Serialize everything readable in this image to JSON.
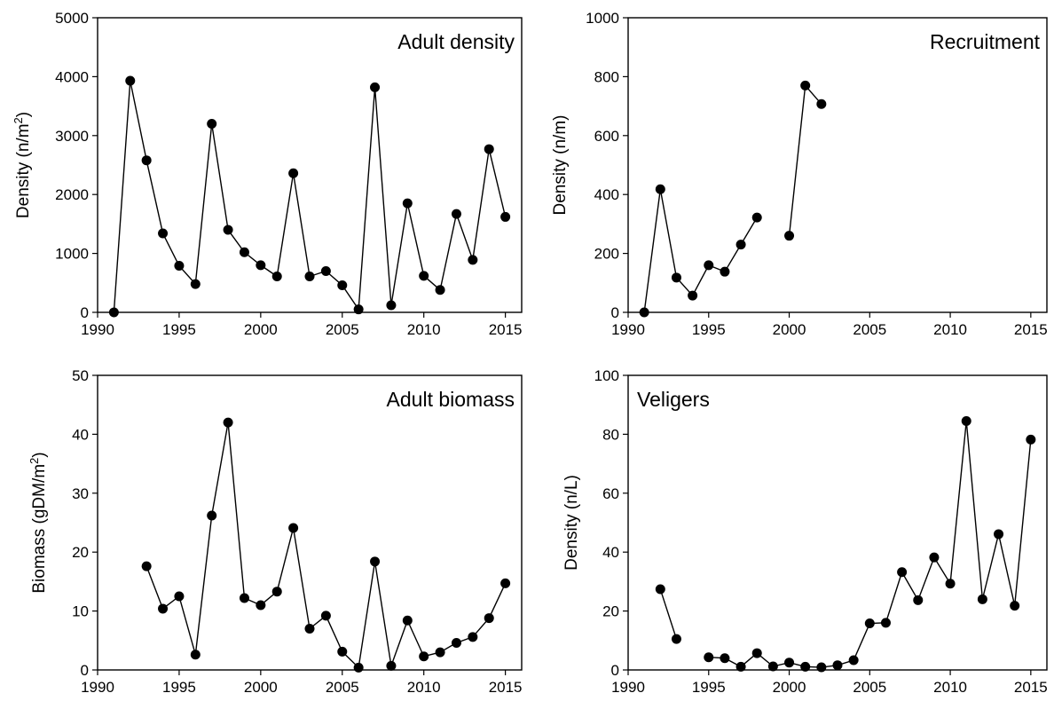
{
  "chart_data": [
    {
      "type": "line",
      "title": "Adult density",
      "title_position": "top-right",
      "xlabel": "",
      "ylabel": "Density (n/m",
      "ylabel_superscript": "2",
      "ylabel_suffix": ")",
      "xlim": [
        1990,
        2016
      ],
      "ylim": [
        0,
        5000
      ],
      "xticks": [
        1990,
        1995,
        2000,
        2005,
        2010,
        2015
      ],
      "yticks": [
        0,
        1000,
        2000,
        3000,
        4000,
        5000
      ],
      "grid": false,
      "marker": "filled-circle",
      "series": [
        {
          "x": [
            1991,
            1992,
            1993,
            1994,
            1995,
            1996,
            1997,
            1998,
            1999,
            2000,
            2001,
            2002,
            2003,
            2004,
            2005,
            2006,
            2007,
            2008,
            2009,
            2010,
            2011,
            2012,
            2013,
            2014,
            2015
          ],
          "y": [
            0,
            3930,
            2580,
            1340,
            790,
            480,
            3200,
            1400,
            1020,
            800,
            610,
            2360,
            610,
            700,
            460,
            50,
            3820,
            120,
            1850,
            620,
            380,
            1670,
            890,
            2770,
            1620
          ]
        }
      ]
    },
    {
      "type": "line",
      "title": "Recruitment",
      "title_position": "top-right",
      "xlabel": "",
      "ylabel": "Density (n/m)",
      "xlim": [
        1990,
        2016
      ],
      "ylim": [
        0,
        1000
      ],
      "xticks": [
        1990,
        1995,
        2000,
        2005,
        2010,
        2015
      ],
      "yticks": [
        0,
        200,
        400,
        600,
        800,
        1000
      ],
      "grid": false,
      "marker": "filled-circle",
      "series": [
        {
          "x": [
            1991,
            1992,
            1993,
            1994,
            1995,
            1996,
            1997,
            1998,
            1999,
            2000,
            2001,
            2002
          ],
          "y": [
            0,
            418,
            118,
            57,
            160,
            138,
            230,
            322,
            null,
            260,
            770,
            707
          ]
        }
      ]
    },
    {
      "type": "line",
      "title": "Adult biomass",
      "title_position": "top-right",
      "xlabel": "",
      "ylabel": "Biomass (gDM/m",
      "ylabel_superscript": "2",
      "ylabel_suffix": ")",
      "xlim": [
        1990,
        2016
      ],
      "ylim": [
        0,
        50
      ],
      "xticks": [
        1990,
        1995,
        2000,
        2005,
        2010,
        2015
      ],
      "yticks": [
        0,
        10,
        20,
        30,
        40,
        50
      ],
      "grid": false,
      "marker": "filled-circle",
      "series": [
        {
          "x": [
            1993,
            1994,
            1995,
            1996,
            1997,
            1998,
            1999,
            2000,
            2001,
            2002,
            2003,
            2004,
            2005,
            2006,
            2007,
            2008,
            2009,
            2010,
            2011,
            2012,
            2013,
            2014,
            2015
          ],
          "y": [
            17.6,
            10.4,
            12.5,
            2.6,
            26.2,
            42.0,
            12.2,
            11.0,
            13.3,
            24.1,
            7.0,
            9.2,
            3.1,
            0.4,
            18.4,
            0.7,
            8.4,
            2.3,
            3.0,
            4.6,
            5.6,
            8.8,
            14.7
          ]
        }
      ]
    },
    {
      "type": "line",
      "title": "Veligers",
      "title_position": "top-left",
      "xlabel": "",
      "ylabel": "Density (n/L)",
      "xlim": [
        1990,
        2016
      ],
      "ylim": [
        0,
        100
      ],
      "xticks": [
        1990,
        1995,
        2000,
        2005,
        2010,
        2015
      ],
      "yticks": [
        0,
        20,
        40,
        60,
        80,
        100
      ],
      "grid": false,
      "marker": "filled-circle",
      "series": [
        {
          "x": [
            1992,
            1993,
            1994,
            1995,
            1996,
            1997,
            1998,
            1999,
            2000,
            2001,
            2002,
            2003,
            2004,
            2005,
            2006,
            2007,
            2008,
            2009,
            2010,
            2011,
            2012,
            2013,
            2014,
            2015
          ],
          "y": [
            27.4,
            10.5,
            null,
            4.3,
            4.0,
            1.1,
            5.7,
            1.2,
            2.5,
            1.1,
            0.9,
            1.6,
            3.3,
            15.8,
            16.0,
            33.2,
            23.7,
            38.2,
            29.3,
            84.5,
            24.0,
            46.1,
            21.8,
            78.2
          ]
        }
      ]
    }
  ]
}
